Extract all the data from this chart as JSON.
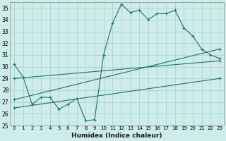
{
  "xlabel": "Humidex (Indice chaleur)",
  "ylabel": "",
  "bg_color": "#ceecea",
  "grid_color": "#aed8d4",
  "line_color": "#1e7070",
  "xlim": [
    -0.5,
    23.5
  ],
  "ylim": [
    25,
    35.5
  ],
  "yticks": [
    25,
    26,
    27,
    28,
    29,
    30,
    31,
    32,
    33,
    34,
    35
  ],
  "xticks": [
    0,
    1,
    2,
    3,
    4,
    5,
    6,
    7,
    8,
    9,
    10,
    11,
    12,
    13,
    14,
    15,
    16,
    17,
    18,
    19,
    20,
    21,
    22,
    23
  ],
  "series": [
    {
      "x": [
        0,
        1,
        2,
        3,
        4,
        5,
        6,
        7,
        8,
        9,
        10,
        11,
        12,
        13,
        14,
        15,
        16,
        17,
        18,
        19,
        20,
        21,
        22,
        23
      ],
      "y": [
        30.2,
        29.1,
        26.8,
        27.4,
        27.4,
        26.4,
        26.8,
        27.3,
        25.4,
        25.5,
        31.0,
        33.7,
        35.3,
        34.6,
        34.8,
        34.0,
        34.5,
        34.5,
        34.8,
        33.3,
        32.6,
        31.5,
        31.0,
        30.7
      ]
    },
    {
      "x": [
        0,
        23
      ],
      "y": [
        29.0,
        30.5
      ]
    },
    {
      "x": [
        0,
        23
      ],
      "y": [
        27.2,
        31.5
      ]
    },
    {
      "x": [
        0,
        23
      ],
      "y": [
        26.5,
        29.0
      ]
    }
  ]
}
